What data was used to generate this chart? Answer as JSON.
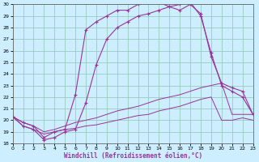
{
  "xlabel": "Windchill (Refroidissement éolien,°C)",
  "hours": [
    0,
    1,
    2,
    3,
    4,
    5,
    6,
    7,
    8,
    9,
    10,
    11,
    12,
    13,
    14,
    15,
    16,
    17,
    18,
    19,
    20,
    21,
    22,
    23
  ],
  "temp": [
    20.3,
    19.8,
    19.5,
    18.5,
    19.0,
    19.2,
    22.2,
    27.8,
    28.5,
    29.0,
    29.5,
    29.5,
    30.0,
    30.2,
    30.2,
    29.8,
    29.5,
    30.0,
    29.2,
    25.5,
    23.2,
    22.8,
    22.5,
    20.5
  ],
  "windchill": [
    20.3,
    19.5,
    19.2,
    18.3,
    18.5,
    19.0,
    19.2,
    21.5,
    24.8,
    27.0,
    28.0,
    28.5,
    29.0,
    29.2,
    29.5,
    29.8,
    30.0,
    30.2,
    29.0,
    25.8,
    23.0,
    22.5,
    22.0,
    20.5
  ],
  "line1": [
    20.3,
    19.8,
    19.5,
    19.0,
    19.2,
    19.5,
    19.8,
    20.0,
    20.2,
    20.5,
    20.8,
    21.0,
    21.2,
    21.5,
    21.8,
    22.0,
    22.2,
    22.5,
    22.8,
    23.0,
    23.2,
    20.5,
    20.5,
    20.5
  ],
  "line2": [
    20.3,
    19.5,
    19.2,
    18.8,
    19.0,
    19.2,
    19.3,
    19.5,
    19.6,
    19.8,
    20.0,
    20.2,
    20.4,
    20.5,
    20.8,
    21.0,
    21.2,
    21.5,
    21.8,
    22.0,
    20.0,
    20.0,
    20.2,
    20.0
  ],
  "line_color": "#993399",
  "bg_color": "#cceeff",
  "grid_color": "#99ccbb",
  "ylim": [
    18,
    30
  ],
  "xlim": [
    0,
    23
  ],
  "yticks": [
    18,
    19,
    20,
    21,
    22,
    23,
    24,
    25,
    26,
    27,
    28,
    29,
    30
  ],
  "xticks": [
    0,
    1,
    2,
    3,
    4,
    5,
    6,
    7,
    8,
    9,
    10,
    11,
    12,
    13,
    14,
    15,
    16,
    17,
    18,
    19,
    20,
    21,
    22,
    23
  ]
}
